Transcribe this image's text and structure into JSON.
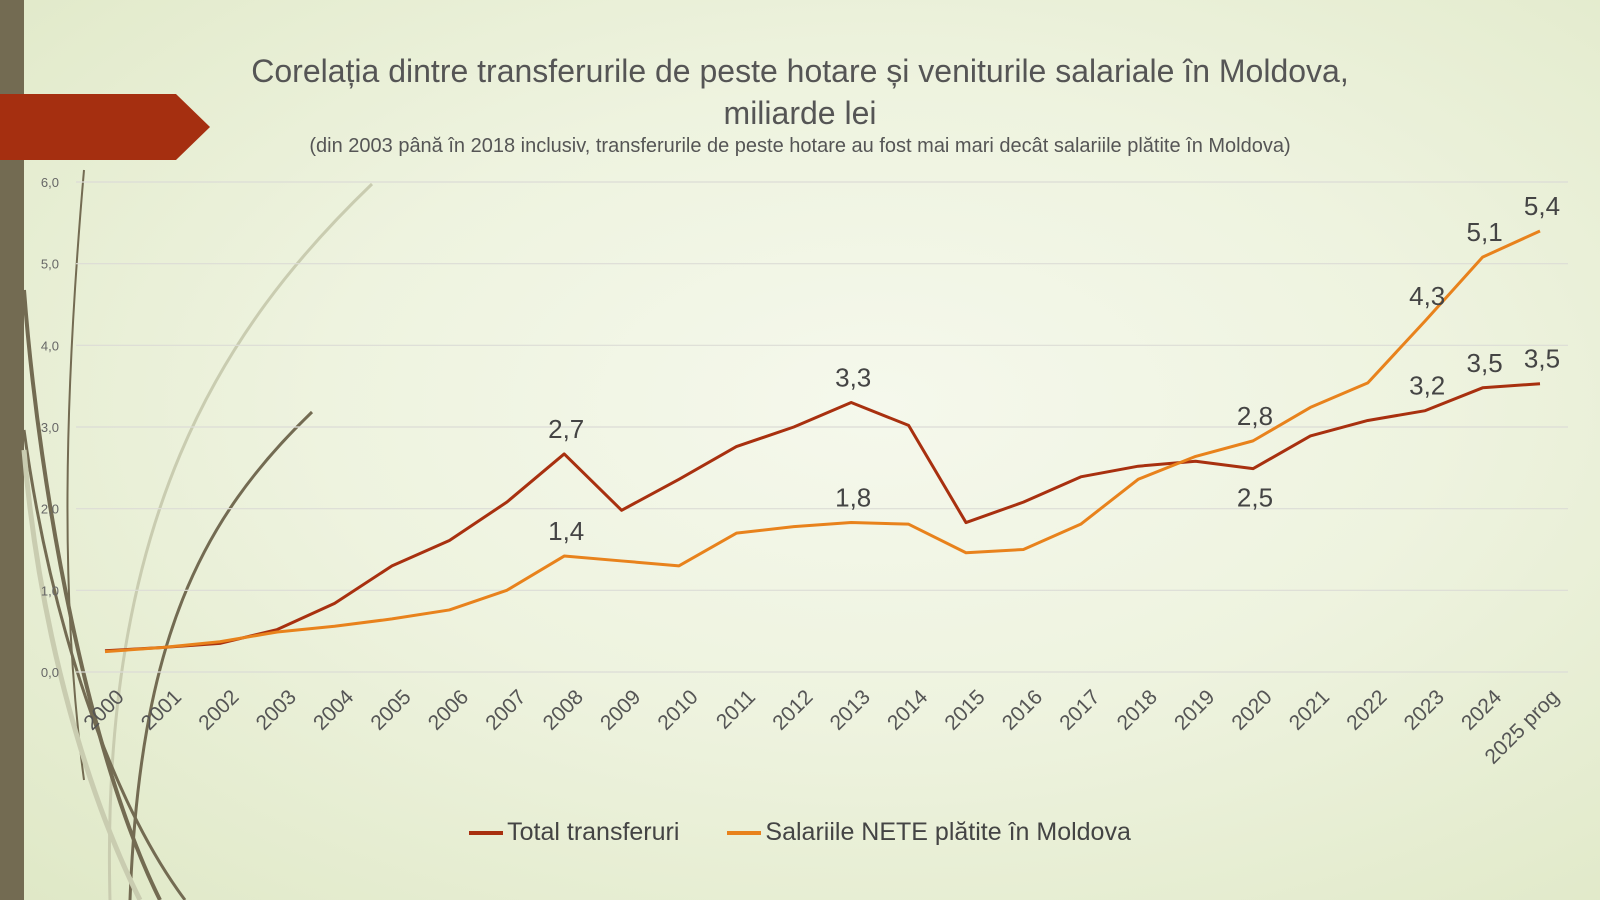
{
  "colors": {
    "total": "#a8300f",
    "salaries": "#e8821c",
    "accent": "#a52f10",
    "strip": "#736b52"
  },
  "chart_data": {
    "type": "line",
    "title": "Corelația dintre transferurile de peste hotare și veniturile salariale în Moldova, miliarde lei",
    "subtitle": "(din 2003 până în 2018 inclusiv, transferurile de peste hotare au fost mai mari decât salariile plătite în Moldova)",
    "xlabel": "",
    "ylabel": "",
    "ylim": [
      0,
      6
    ],
    "yticks": [
      "0,0",
      "1,0",
      "2,0",
      "3,0",
      "4,0",
      "5,0",
      "6,0"
    ],
    "categories": [
      "2000",
      "2001",
      "2002",
      "2003",
      "2004",
      "2005",
      "2006",
      "2007",
      "2008",
      "2009",
      "2010",
      "2011",
      "2012",
      "2013",
      "2014",
      "2015",
      "2016",
      "2017",
      "2018",
      "2019",
      "2020",
      "2021",
      "2022",
      "2023",
      "2024",
      "2025 prog"
    ],
    "series": [
      {
        "name": "Total transferuri",
        "values": [
          0.26,
          0.3,
          0.35,
          0.52,
          0.84,
          1.3,
          1.61,
          2.08,
          2.67,
          1.98,
          2.36,
          2.76,
          3.0,
          3.3,
          3.02,
          1.83,
          2.08,
          2.39,
          2.52,
          2.58,
          2.49,
          2.89,
          3.08,
          3.2,
          3.48,
          3.53
        ],
        "labels": {
          "8": "2,7",
          "13": "3,3",
          "20": "2,5",
          "23": "3,2",
          "24": "3,5",
          "25": "3,5"
        }
      },
      {
        "name": "Salariile NETE plătite în Moldova",
        "values": [
          0.25,
          0.3,
          0.37,
          0.49,
          0.56,
          0.65,
          0.76,
          1.0,
          1.42,
          1.36,
          1.3,
          1.7,
          1.78,
          1.83,
          1.81,
          1.46,
          1.5,
          1.81,
          2.36,
          2.64,
          2.83,
          3.24,
          3.54,
          4.3,
          5.08,
          5.4
        ],
        "labels": {
          "8": "1,4",
          "13": "1,8",
          "20": "2,8",
          "23": "4,3",
          "24": "5,1",
          "25": "5,4"
        }
      }
    ],
    "grid": true,
    "legend": "bottom"
  }
}
